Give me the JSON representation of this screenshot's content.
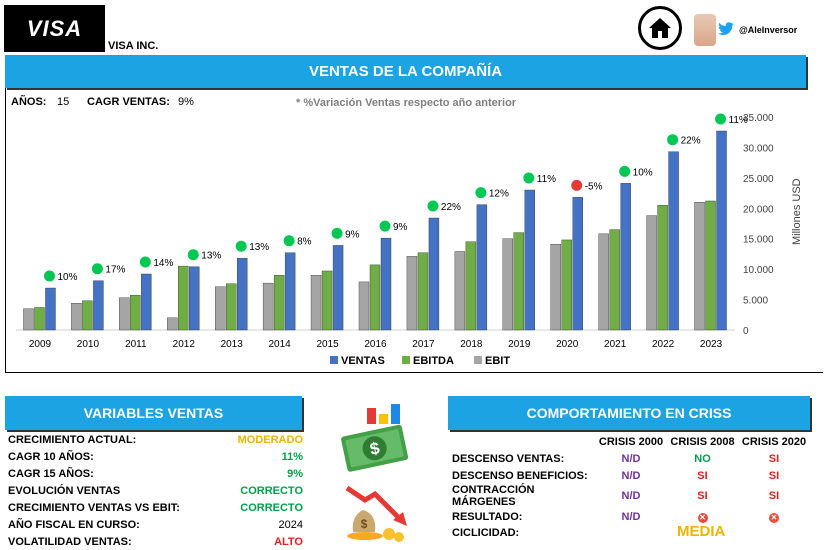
{
  "header": {
    "logo_text": "VISA",
    "company_name": "VISA INC.",
    "twitter_handle": "@AleInversor",
    "home_icon": "home-icon",
    "twitter_icon": "twitter-icon"
  },
  "main_title": "VENTAS DE LA COMPAÑÍA",
  "stats": {
    "years_label": "AÑOS:",
    "years_value": "15",
    "cagr_label": "CAGR VENTAS:",
    "cagr_value": "9%",
    "note": "* %Variación Ventas respecto año anterior"
  },
  "chart_data": {
    "type": "bar",
    "categories": [
      "2009",
      "2010",
      "2011",
      "2012",
      "2013",
      "2014",
      "2015",
      "2016",
      "2017",
      "2018",
      "2019",
      "2020",
      "2021",
      "2022",
      "2023"
    ],
    "series": [
      {
        "name": "VENTAS",
        "color": "#4472c4",
        "values": [
          6900,
          8100,
          9200,
          10400,
          11800,
          12700,
          13900,
          15100,
          18400,
          20600,
          23000,
          21800,
          24100,
          29300,
          32700
        ]
      },
      {
        "name": "EBITDA",
        "color": "#70ad47",
        "values": [
          3700,
          4800,
          5700,
          10500,
          7600,
          9000,
          9700,
          10700,
          12700,
          14500,
          16000,
          14800,
          16500,
          20500,
          21200
        ]
      },
      {
        "name": "EBIT",
        "color": "#a5a5a5",
        "values": [
          3500,
          4400,
          5300,
          2000,
          7100,
          7700,
          9000,
          7900,
          12100,
          12900,
          15000,
          14100,
          15800,
          18800,
          21000
        ]
      }
    ],
    "growth_labels": [
      "10%",
      "17%",
      "14%",
      "13%",
      "13%",
      "8%",
      "9%",
      "9%",
      "22%",
      "12%",
      "11%",
      "-5%",
      "10%",
      "22%",
      "11%"
    ],
    "growth_colors": [
      "#00c853",
      "#00c853",
      "#00c853",
      "#00c853",
      "#00c853",
      "#00c853",
      "#00c853",
      "#00c853",
      "#00c853",
      "#00c853",
      "#00c853",
      "#e53935",
      "#00c853",
      "#00c853",
      "#00c853"
    ],
    "y_ticks": [
      "0",
      "5.000",
      "10.000",
      "15.000",
      "20.000",
      "25.000",
      "30.000",
      "35.000"
    ],
    "ylim": [
      0,
      35000
    ],
    "ylabel": "Millones   USD",
    "legend_position": "bottom"
  },
  "variables": {
    "title": "VARIABLES VENTAS",
    "rows": [
      {
        "label": "CRECIMIENTO ACTUAL:",
        "value": "MODERADO",
        "color": "amber"
      },
      {
        "label": "CAGR 10 AÑOS:",
        "value": "11%",
        "color": "green"
      },
      {
        "label": "CAGR 15 AÑOS:",
        "value": "9%",
        "color": "green"
      },
      {
        "label": "EVOLUCIÓN VENTAS",
        "value": "CORRECTO",
        "color": "green"
      },
      {
        "label": "CRECIMIENTO VENTAS VS EBIT:",
        "value": "CORRECTO",
        "color": "green"
      },
      {
        "label": "AÑO FISCAL EN CURSO:",
        "value": "2024",
        "color": "black"
      },
      {
        "label": "VOLATILIDAD VENTAS:",
        "value": "ALTO",
        "color": "red"
      }
    ]
  },
  "crisis": {
    "title": "COMPORTAMIENTO EN CRISS",
    "columns": [
      "CRISIS 2000",
      "CRISIS 2008",
      "CRISIS 2020"
    ],
    "rows": [
      {
        "label": "DESCENSO VENTAS:",
        "values": [
          "N/D",
          "NO",
          "SI"
        ],
        "colors": [
          "purple",
          "green",
          "red"
        ]
      },
      {
        "label": "DESCENSO BENEFICIOS:",
        "values": [
          "N/D",
          "SI",
          "SI"
        ],
        "colors": [
          "purple",
          "red",
          "red"
        ]
      },
      {
        "label": "CONTRACCIÓN MÁRGENES",
        "values": [
          "N/D",
          "SI",
          "SI"
        ],
        "colors": [
          "purple",
          "red",
          "red"
        ]
      }
    ],
    "result_label": "RESULTADO:",
    "result_values": [
      "N/D",
      "✕",
      "✕"
    ],
    "cyclicality_label": "CICLICIDAD:",
    "cyclicality_value": "MEDIA"
  }
}
